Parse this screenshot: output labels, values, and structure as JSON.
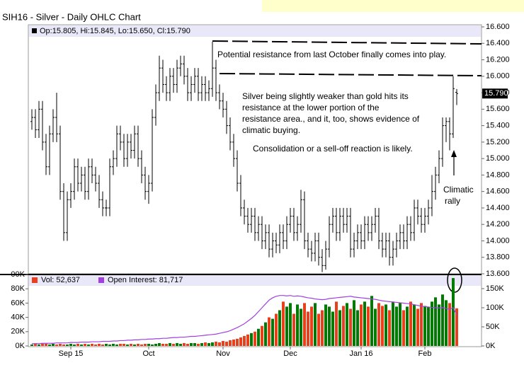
{
  "chart_data": {
    "type": "ohlc",
    "title": "SIH16 - Silver - Daily OHLC Chart",
    "ohlc_label": "Op:15.805, Hi:15.845, Lo:15.650, Cl:15.790",
    "last_price_label": "15.790",
    "annotations": [
      "Potential resistance from last October finally comes into play.",
      "Silver being slightly weaker than gold hits its",
      "resistance at the lower portion of the",
      "resistance area., and it, too, shows evidence of",
      "climatic buying.",
      "Consolidation or a sell-off reaction is likely.",
      "Climatic",
      "rally"
    ],
    "categories": [
      null,
      null,
      null,
      null,
      null,
      null,
      null,
      null,
      null,
      null,
      null,
      "Sep 15",
      null,
      null,
      null,
      null,
      null,
      null,
      null,
      null,
      null,
      null,
      null,
      null,
      null,
      null,
      null,
      null,
      null,
      null,
      null,
      null,
      null,
      "Oct",
      null,
      null,
      null,
      null,
      null,
      null,
      null,
      null,
      null,
      null,
      null,
      null,
      null,
      null,
      null,
      null,
      null,
      null,
      null,
      null,
      "Nov",
      null,
      null,
      null,
      null,
      null,
      null,
      null,
      null,
      null,
      null,
      null,
      null,
      null,
      null,
      null,
      null,
      null,
      null,
      "Dec",
      null,
      null,
      null,
      null,
      null,
      null,
      null,
      null,
      null,
      null,
      null,
      null,
      null,
      null,
      null,
      null,
      null,
      null,
      null,
      "Jan 16",
      null,
      null,
      null,
      null,
      null,
      null,
      null,
      null,
      null,
      null,
      null,
      null,
      null,
      null,
      null,
      null,
      null,
      "Feb",
      null,
      null,
      null,
      null,
      null,
      null,
      null,
      null,
      null
    ],
    "open": [
      15.45,
      15.5,
      15.35,
      15.6,
      15.2,
      14.9,
      15.3,
      15.5,
      15.3,
      14.6,
      14.1,
      14.5,
      14.6,
      14.9,
      14.7,
      14.8,
      14.6,
      14.9,
      14.8,
      14.7,
      14.5,
      14.4,
      14.4,
      14.9,
      15.0,
      15.3,
      15.2,
      15.0,
      15.2,
      15.1,
      15.3,
      15.0,
      14.8,
      14.6,
      14.7,
      15.5,
      15.8,
      16.1,
      15.9,
      15.8,
      16.0,
      15.9,
      16.1,
      16.15,
      16.0,
      15.8,
      15.9,
      16.0,
      15.8,
      15.9,
      15.8,
      15.85,
      16.1,
      15.8,
      15.7,
      15.6,
      15.4,
      15.2,
      15.0,
      14.7,
      14.4,
      14.3,
      14.2,
      14.3,
      14.1,
      14.2,
      14.0,
      14.1,
      13.9,
      14.0,
      13.95,
      14.1,
      14.0,
      14.2,
      14.3,
      14.1,
      14.2,
      14.5,
      14.0,
      13.9,
      13.85,
      14.0,
      13.8,
      13.7,
      13.9,
      14.2,
      14.3,
      14.1,
      14.3,
      14.2,
      14.3,
      13.9,
      14.0,
      14.1,
      14.0,
      14.2,
      14.1,
      14.2,
      14.3,
      14.0,
      13.9,
      14.0,
      13.8,
      13.9,
      14.0,
      14.1,
      14.0,
      14.2,
      14.1,
      14.4,
      14.3,
      14.2,
      14.3,
      14.4,
      14.6,
      14.8,
      15.0,
      15.4,
      15.45,
      15.3,
      15.805
    ],
    "high": [
      15.6,
      15.6,
      15.7,
      15.7,
      15.3,
      15.4,
      15.6,
      15.8,
      15.4,
      14.7,
      14.6,
      14.7,
      15.0,
      15.0,
      14.9,
      14.9,
      15.0,
      15.0,
      14.9,
      14.8,
      14.6,
      14.5,
      15.0,
      15.1,
      15.4,
      15.4,
      15.3,
      15.3,
      15.3,
      15.4,
      15.4,
      15.1,
      14.9,
      14.8,
      15.6,
      15.9,
      16.25,
      16.2,
      16.0,
      16.1,
      16.1,
      16.2,
      16.25,
      16.25,
      16.1,
      16.0,
      16.1,
      16.1,
      16.0,
      16.0,
      15.95,
      16.42,
      16.2,
      15.9,
      15.8,
      15.7,
      15.5,
      15.3,
      15.1,
      14.8,
      14.5,
      14.4,
      14.4,
      14.4,
      14.3,
      14.3,
      14.2,
      14.2,
      14.1,
      14.1,
      14.2,
      14.2,
      14.3,
      14.4,
      14.4,
      14.3,
      14.62,
      14.6,
      14.1,
      14.0,
      14.1,
      14.1,
      13.9,
      14.0,
      14.3,
      14.4,
      14.4,
      14.4,
      14.4,
      14.4,
      14.4,
      14.1,
      14.2,
      14.2,
      14.3,
      14.3,
      14.3,
      14.4,
      14.4,
      14.1,
      14.1,
      14.1,
      14.0,
      14.1,
      14.2,
      14.2,
      14.3,
      14.3,
      14.5,
      14.5,
      14.4,
      14.4,
      14.5,
      14.8,
      14.9,
      15.1,
      15.5,
      15.5,
      15.5,
      16.0,
      15.845
    ],
    "low": [
      15.35,
      15.25,
      15.25,
      15.1,
      14.8,
      14.8,
      15.2,
      15.2,
      14.5,
      14.0,
      14.0,
      14.4,
      14.5,
      14.6,
      14.6,
      14.5,
      14.5,
      14.7,
      14.6,
      14.4,
      14.3,
      14.3,
      14.3,
      14.8,
      14.9,
      15.1,
      14.9,
      14.9,
      15.0,
      15.0,
      14.9,
      14.7,
      14.5,
      14.45,
      14.6,
      15.4,
      15.7,
      15.8,
      15.7,
      15.7,
      15.8,
      15.8,
      16.0,
      15.9,
      15.7,
      15.7,
      15.8,
      15.7,
      15.7,
      15.7,
      15.7,
      15.75,
      15.7,
      15.6,
      15.5,
      15.3,
      15.1,
      14.9,
      14.6,
      14.3,
      14.2,
      14.1,
      14.1,
      14.0,
      14.0,
      13.9,
      13.9,
      13.8,
      13.8,
      13.85,
      13.85,
      13.9,
      13.9,
      14.1,
      14.0,
      14.0,
      14.1,
      13.9,
      13.8,
      13.75,
      13.75,
      13.7,
      13.62,
      13.65,
      13.8,
      14.1,
      14.0,
      14.0,
      14.1,
      14.1,
      13.8,
      13.8,
      13.9,
      13.9,
      13.9,
      14.0,
      14.0,
      14.1,
      13.9,
      13.8,
      13.8,
      13.7,
      13.7,
      13.8,
      13.9,
      13.9,
      13.9,
      14.0,
      14.0,
      14.2,
      14.1,
      14.1,
      14.2,
      14.3,
      14.5,
      14.7,
      14.9,
      15.2,
      15.1,
      15.25,
      15.65
    ],
    "close": [
      15.5,
      15.35,
      15.6,
      15.2,
      14.9,
      15.3,
      15.5,
      15.3,
      14.6,
      14.1,
      14.5,
      14.6,
      14.9,
      14.7,
      14.8,
      14.6,
      14.9,
      14.8,
      14.7,
      14.5,
      14.4,
      14.4,
      14.9,
      15.0,
      15.3,
      15.2,
      15.0,
      15.2,
      15.1,
      15.3,
      15.0,
      14.8,
      14.6,
      14.7,
      15.5,
      15.8,
      16.1,
      15.9,
      15.8,
      16.0,
      15.9,
      16.1,
      16.15,
      16.0,
      15.8,
      15.9,
      16.0,
      15.8,
      15.9,
      15.8,
      15.85,
      16.1,
      15.8,
      15.7,
      15.6,
      15.4,
      15.2,
      15.0,
      14.7,
      14.4,
      14.3,
      14.2,
      14.3,
      14.1,
      14.2,
      14.0,
      14.1,
      13.9,
      14.0,
      13.95,
      14.1,
      14.0,
      14.2,
      14.3,
      14.1,
      14.2,
      14.5,
      14.0,
      13.9,
      13.85,
      14.0,
      13.8,
      13.7,
      13.9,
      14.2,
      14.3,
      14.1,
      14.3,
      14.2,
      14.3,
      13.9,
      14.0,
      14.1,
      14.0,
      14.2,
      14.1,
      14.2,
      14.3,
      14.0,
      13.9,
      14.0,
      13.8,
      13.9,
      14.0,
      14.1,
      14.0,
      14.2,
      14.1,
      14.4,
      14.3,
      14.2,
      14.3,
      14.4,
      14.6,
      14.8,
      15.0,
      15.4,
      15.45,
      15.3,
      15.85,
      15.79
    ],
    "color": "#000000",
    "ylim": [
      13.6,
      16.6
    ],
    "yticks": [
      {
        "value": 13.6,
        "label": "13.600"
      },
      {
        "value": 13.8,
        "label": "13.800"
      },
      {
        "value": 14.0,
        "label": "14.000"
      },
      {
        "value": 14.2,
        "label": "14.200"
      },
      {
        "value": 14.4,
        "label": "14.400"
      },
      {
        "value": 14.6,
        "label": "14.600"
      },
      {
        "value": 14.8,
        "label": "14.800"
      },
      {
        "value": 15.0,
        "label": "15.000"
      },
      {
        "value": 15.2,
        "label": "15.200"
      },
      {
        "value": 15.4,
        "label": "15.400"
      },
      {
        "value": 15.6,
        "label": "15.600"
      },
      {
        "value": 15.8,
        "label": "15.800"
      },
      {
        "value": 16.0,
        "label": "16.000"
      },
      {
        "value": 16.2,
        "label": "16.200"
      },
      {
        "value": 16.4,
        "label": "16.400"
      },
      {
        "value": 16.6,
        "label": "16.600"
      }
    ],
    "volume": {
      "name": "Vol: 52,637",
      "up_color": "#007a00",
      "down_color": "#e8401c",
      "values": [
        2,
        3,
        2,
        3,
        3,
        2,
        3,
        2,
        3,
        2,
        2,
        3,
        2,
        3,
        2,
        3,
        2,
        3,
        2,
        3,
        2,
        3,
        2,
        3,
        2,
        3,
        3,
        2,
        3,
        2,
        3,
        2,
        3,
        3,
        2,
        3,
        4,
        3,
        3,
        4,
        3,
        4,
        3,
        4,
        3,
        4,
        4,
        3,
        4,
        5,
        4,
        5,
        6,
        5,
        7,
        6,
        8,
        9,
        10,
        12,
        14,
        16,
        18,
        20,
        24,
        28,
        33,
        40,
        38,
        45,
        50,
        62,
        55,
        60,
        45,
        58,
        52,
        60,
        48,
        55,
        60,
        45,
        50,
        58,
        55,
        48,
        62,
        50,
        56,
        60,
        52,
        64,
        50,
        58,
        62,
        55,
        70,
        52,
        60,
        56,
        58,
        50,
        62,
        55,
        60,
        50,
        55,
        62,
        58,
        52,
        60,
        56,
        55,
        62,
        68,
        58,
        72,
        64,
        60,
        95,
        52.637
      ],
      "ylim": [
        0,
        100
      ],
      "yticks": [
        {
          "value": 0,
          "label": "0K"
        },
        {
          "value": 20,
          "label": "20K"
        },
        {
          "value": 40,
          "label": "40K"
        },
        {
          "value": 60,
          "label": "60K"
        },
        {
          "value": 80,
          "label": "80K"
        },
        {
          "value": 100,
          "label": "00K"
        }
      ]
    },
    "open_interest": {
      "name": "Open Interest: 81,717",
      "color": "#a040e0",
      "axis": "y2",
      "values": [
        6,
        6,
        6,
        7,
        7,
        7,
        7,
        8,
        8,
        8,
        8,
        9,
        9,
        9,
        10,
        10,
        10,
        11,
        11,
        11,
        12,
        12,
        12,
        13,
        13,
        14,
        14,
        15,
        15,
        16,
        16,
        17,
        17,
        18,
        18,
        19,
        19,
        20,
        20,
        21,
        22,
        22,
        23,
        23,
        24,
        25,
        25,
        26,
        27,
        28,
        29,
        30,
        31,
        33,
        35,
        37,
        40,
        44,
        48,
        53,
        58,
        65,
        72,
        80,
        90,
        100,
        110,
        120,
        126,
        130,
        132,
        132,
        131,
        132,
        130,
        131,
        130,
        128,
        126,
        125,
        123,
        122,
        121,
        122,
        124,
        125,
        126,
        127,
        128,
        129,
        130,
        128,
        127,
        126,
        125,
        124,
        123,
        122,
        120,
        118,
        117,
        116,
        115,
        114,
        113,
        112,
        111,
        110,
        108,
        106,
        104,
        103,
        102,
        101,
        100,
        99,
        100,
        98,
        96,
        100,
        81.717
      ]
    },
    "y2lim": [
      0,
      187
    ],
    "y2ticks": [
      {
        "value": 0,
        "label": "0K"
      },
      {
        "value": 50,
        "label": "50K"
      },
      {
        "value": 100,
        "label": "100K"
      },
      {
        "value": 150,
        "label": "150K"
      }
    ]
  }
}
